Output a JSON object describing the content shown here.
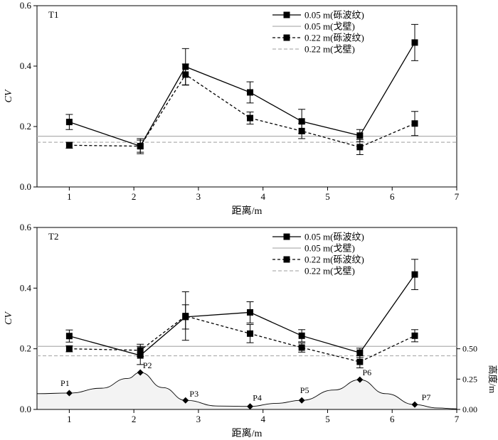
{
  "chart_data": [
    {
      "type": "line",
      "panel_label": "T1",
      "xlabel": "距离/m",
      "ylabel": "CV",
      "xlim": [
        0.5,
        7
      ],
      "ylim": [
        0,
        0.6
      ],
      "x_ticks": [
        "1",
        "2",
        "3",
        "4",
        "5",
        "6",
        "7"
      ],
      "y_ticks": [
        "0.0",
        "0.2",
        "0.4",
        "0.6"
      ],
      "legend_position": "top-right",
      "series": [
        {
          "name": "0.05 m(砾波纹)",
          "style": "solid-square",
          "x": [
            1,
            2.1,
            2.8,
            3.8,
            4.6,
            5.5,
            6.35
          ],
          "y": [
            0.215,
            0.135,
            0.398,
            0.313,
            0.217,
            0.17,
            0.478
          ],
          "error": [
            0.025,
            0.025,
            0.06,
            0.035,
            0.04,
            0.02,
            0.06
          ]
        },
        {
          "name": "0.05 m(戈壁)",
          "style": "solid-gray-line",
          "y_const": 0.168
        },
        {
          "name": "0.22 m(砾波纹)",
          "style": "dashed-square",
          "x": [
            1,
            2.1,
            2.8,
            3.8,
            4.6,
            5.5,
            6.35
          ],
          "y": [
            0.138,
            0.135,
            0.372,
            0.228,
            0.185,
            0.132,
            0.21
          ],
          "error": [
            0.01,
            0.02,
            0.035,
            0.02,
            0.025,
            0.025,
            0.04
          ]
        },
        {
          "name": "0.22 m(戈壁)",
          "style": "dashed-gray-line",
          "y_const": 0.148
        }
      ]
    },
    {
      "type": "line",
      "panel_label": "T2",
      "xlabel": "距离/m",
      "ylabel": "CV",
      "y2label": "高度/m",
      "xlim": [
        0.5,
        7
      ],
      "ylim": [
        0,
        0.6
      ],
      "y2lim": [
        0,
        1.5
      ],
      "x_ticks": [
        "1",
        "2",
        "3",
        "4",
        "5",
        "6",
        "7"
      ],
      "y_ticks": [
        "0.0",
        "0.2",
        "0.4",
        "0.6"
      ],
      "y2_ticks": [
        "0.00",
        "0.25",
        "0.50"
      ],
      "legend_position": "top-right",
      "series": [
        {
          "name": "0.05 m(砾波纹)",
          "style": "solid-square",
          "x": [
            1,
            2.1,
            2.8,
            3.8,
            4.6,
            5.5,
            6.35
          ],
          "y": [
            0.242,
            0.178,
            0.305,
            0.32,
            0.243,
            0.187,
            0.445
          ],
          "error": [
            0.02,
            0.03,
            0.04,
            0.035,
            0.02,
            0.015,
            0.05
          ]
        },
        {
          "name": "0.05 m(戈壁)",
          "style": "solid-gray-line",
          "y_const": 0.208
        },
        {
          "name": "0.22 m(砾波纹)",
          "style": "dashed-square",
          "x": [
            1,
            2.1,
            2.8,
            3.8,
            4.6,
            5.5,
            6.35
          ],
          "y": [
            0.2,
            0.195,
            0.308,
            0.25,
            0.204,
            0.157,
            0.243
          ],
          "error": [
            0.01,
            0.02,
            0.08,
            0.03,
            0.015,
            0.02,
            0.02
          ]
        },
        {
          "name": "0.22 m(戈壁)",
          "style": "dashed-gray-line",
          "y_const": 0.177
        }
      ],
      "height_profile": {
        "points": [
          {
            "label": "P1",
            "x": 1,
            "h": 0.135
          },
          {
            "label": "P2",
            "x": 2.1,
            "h": 0.305
          },
          {
            "label": "P3",
            "x": 2.8,
            "h": 0.075
          },
          {
            "label": "P4",
            "x": 3.8,
            "h": 0.025
          },
          {
            "label": "P5",
            "x": 4.6,
            "h": 0.075
          },
          {
            "label": "P6",
            "x": 5.5,
            "h": 0.245
          },
          {
            "label": "P7",
            "x": 6.35,
            "h": 0.04
          }
        ],
        "curve_x": [
          0.5,
          1,
          1.5,
          1.9,
          2.1,
          2.45,
          2.8,
          3.3,
          3.8,
          4.2,
          4.6,
          5.1,
          5.5,
          5.9,
          6.35,
          6.7,
          7
        ],
        "curve_h": [
          0.13,
          0.135,
          0.175,
          0.255,
          0.305,
          0.18,
          0.075,
          0.028,
          0.025,
          0.05,
          0.075,
          0.16,
          0.245,
          0.13,
          0.04,
          0.012,
          0.005
        ]
      }
    }
  ]
}
